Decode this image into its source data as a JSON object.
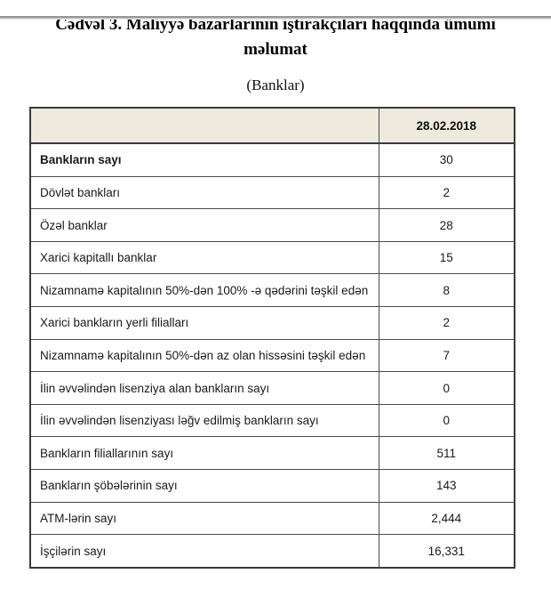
{
  "page": {
    "title": "Cədvəl 3. Maliyyə bazarlarının iştirakçıları haqqında ümumi məlumat",
    "subtitle": "(Banklar)"
  },
  "colors": {
    "header_background": "#edeadd",
    "table_border": "#3a3a3a",
    "text": "#1a1a1a",
    "top_rule": "#8c8c8c"
  },
  "table": {
    "column_headers": [
      "",
      "28.02.2018"
    ],
    "rows": [
      {
        "label": "Bankların sayı",
        "value": "30",
        "bold": true
      },
      {
        "label": "Dövlət bankları",
        "value": "2",
        "bold": false
      },
      {
        "label": "Özəl banklar",
        "value": "28",
        "bold": false
      },
      {
        "label": "Xarici kapitallı banklar",
        "value": "15",
        "bold": false
      },
      {
        "label": "Nizamnamə kapitalının 50%-dən 100% -ə qədərini təşkil edən",
        "value": "8",
        "bold": false
      },
      {
        "label": "Xarici bankların yerli filialları",
        "value": "2",
        "bold": false
      },
      {
        "label": "Nizamnamə kapitalının 50%-dən az olan hissəsini  təşkil edən",
        "value": "7",
        "bold": false
      },
      {
        "label": "İlin əvvəlindən lisenziya alan bankların sayı",
        "value": "0",
        "bold": false
      },
      {
        "label": "İlin əvvəlindən lisenziyası ləğv edilmiş bankların sayı",
        "value": "0",
        "bold": false
      },
      {
        "label": "Bankların filiallarının sayı",
        "value": "511",
        "bold": false
      },
      {
        "label": "Bankların şöbələrinin sayı",
        "value": "143",
        "bold": false
      },
      {
        "label": "ATM-lərin sayı",
        "value": "2,444",
        "bold": false
      },
      {
        "label": "İşçilərin sayı",
        "value": "16,331",
        "bold": false
      }
    ]
  }
}
